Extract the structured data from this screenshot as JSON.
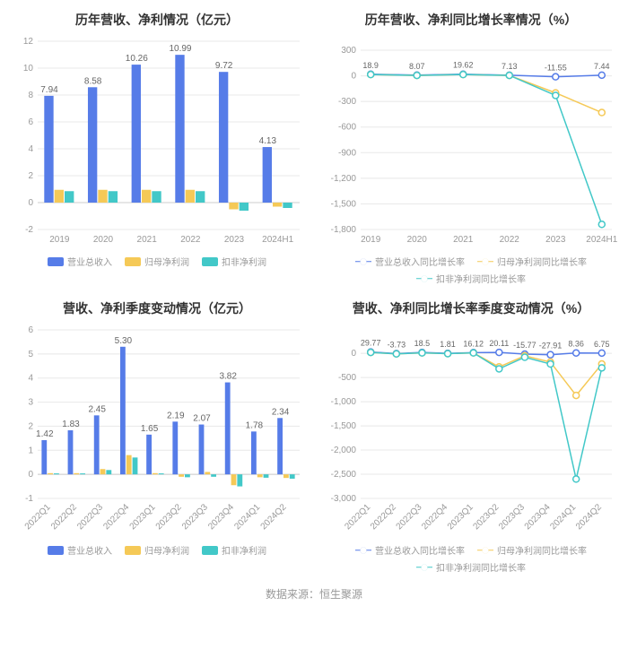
{
  "colors": {
    "series1": "#567ce8",
    "series2": "#f5c957",
    "series3": "#42c8c8",
    "grid": "#e8e8e8",
    "axis": "#cccccc",
    "text_muted": "#999999",
    "label": "#666666",
    "bg": "#ffffff"
  },
  "footer": "数据来源：恒生聚源",
  "chart1": {
    "title": "历年营收、净利情况（亿元）",
    "type": "bar",
    "categories": [
      "2019",
      "2020",
      "2021",
      "2022",
      "2023",
      "2024H1"
    ],
    "series": [
      {
        "name": "营业总收入",
        "color_key": "series1",
        "values": [
          7.94,
          8.58,
          10.26,
          10.99,
          9.72,
          4.13
        ],
        "show_value": true
      },
      {
        "name": "归母净利润",
        "color_key": "series2",
        "values": [
          0.95,
          0.95,
          0.95,
          0.95,
          -0.5,
          -0.3
        ],
        "show_value": false
      },
      {
        "name": "扣非净利润",
        "color_key": "series3",
        "values": [
          0.85,
          0.85,
          0.85,
          0.85,
          -0.6,
          -0.4
        ],
        "show_value": false
      }
    ],
    "ylim": [
      -2,
      12
    ],
    "ytick_step": 2,
    "legend": [
      "营业总收入",
      "归母净利润",
      "扣非净利润"
    ],
    "legend_style": "bar"
  },
  "chart2": {
    "title": "历年营收、净利同比增长率情况（%）",
    "type": "line",
    "categories": [
      "2019",
      "2020",
      "2021",
      "2022",
      "2023",
      "2024H1"
    ],
    "series": [
      {
        "name": "营业总收入同比增长率",
        "color_key": "series1",
        "values": [
          18.9,
          8.07,
          19.62,
          7.13,
          -11.55,
          7.44
        ],
        "show_value": true
      },
      {
        "name": "归母净利润同比增长率",
        "color_key": "series2",
        "values": [
          15,
          5,
          15,
          5,
          -200,
          -430
        ],
        "show_value": false
      },
      {
        "name": "扣非净利润同比增长率",
        "color_key": "series3",
        "values": [
          15,
          5,
          15,
          5,
          -230,
          -1740
        ],
        "show_value": false
      }
    ],
    "ylim": [
      -1800,
      300
    ],
    "ytick_step": 300,
    "legend": [
      "营业总收入同比增长率",
      "归母净利润同比增长率",
      "扣非净利润同比增长率"
    ],
    "legend_style": "line"
  },
  "chart3": {
    "title": "营收、净利季度变动情况（亿元）",
    "type": "bar",
    "categories": [
      "2022Q1",
      "2022Q2",
      "2022Q3",
      "2022Q4",
      "2023Q1",
      "2023Q2",
      "2023Q3",
      "2023Q4",
      "2024Q1",
      "2024Q2"
    ],
    "series": [
      {
        "name": "营业总收入",
        "color_key": "series1",
        "values": [
          1.42,
          1.83,
          2.45,
          5.3,
          1.65,
          2.19,
          2.07,
          3.82,
          1.78,
          2.34
        ],
        "show_value": true
      },
      {
        "name": "归母净利润",
        "color_key": "series2",
        "values": [
          0.05,
          0.05,
          0.22,
          0.8,
          0.05,
          -0.1,
          0.1,
          -0.45,
          -0.12,
          -0.15
        ],
        "show_value": false
      },
      {
        "name": "扣非净利润",
        "color_key": "series3",
        "values": [
          0.04,
          0.04,
          0.18,
          0.7,
          0.04,
          -0.12,
          -0.1,
          -0.5,
          -0.14,
          -0.18
        ],
        "show_value": false
      }
    ],
    "ylim": [
      -1,
      6
    ],
    "ytick_step": 1,
    "legend": [
      "营业总收入",
      "归母净利润",
      "扣非净利润"
    ],
    "legend_style": "bar",
    "rotate_x": true
  },
  "chart4": {
    "title": "营收、净利同比增长率季度变动情况（%）",
    "type": "line",
    "categories": [
      "2022Q1",
      "2022Q2",
      "2022Q3",
      "2022Q4",
      "2023Q1",
      "2023Q2",
      "2023Q3",
      "2023Q4",
      "2024Q1",
      "2024Q2"
    ],
    "series": [
      {
        "name": "营业总收入同比增长率",
        "color_key": "series1",
        "values": [
          29.77,
          -3.73,
          18.5,
          1.81,
          16.12,
          20.11,
          -15.77,
          -27.91,
          8.36,
          6.75
        ],
        "show_value": true
      },
      {
        "name": "归母净利润同比增长率",
        "color_key": "series2",
        "values": [
          20,
          -10,
          10,
          -5,
          10,
          -280,
          -50,
          -180,
          -870,
          -220
        ],
        "show_value": false
      },
      {
        "name": "扣非净利润同比增长率",
        "color_key": "series3",
        "values": [
          20,
          -10,
          10,
          -5,
          10,
          -320,
          -80,
          -220,
          -2600,
          -300
        ],
        "show_value": false
      }
    ],
    "ylim": [
      -3000,
      300
    ],
    "yticks": [
      -3000,
      -2500,
      -2000,
      -1500,
      -1000,
      -500,
      0
    ],
    "legend": [
      "营业总收入同比增长率",
      "归母净利润同比增长率",
      "扣非净利润同比增长率"
    ],
    "legend_style": "line",
    "rotate_x": true
  }
}
